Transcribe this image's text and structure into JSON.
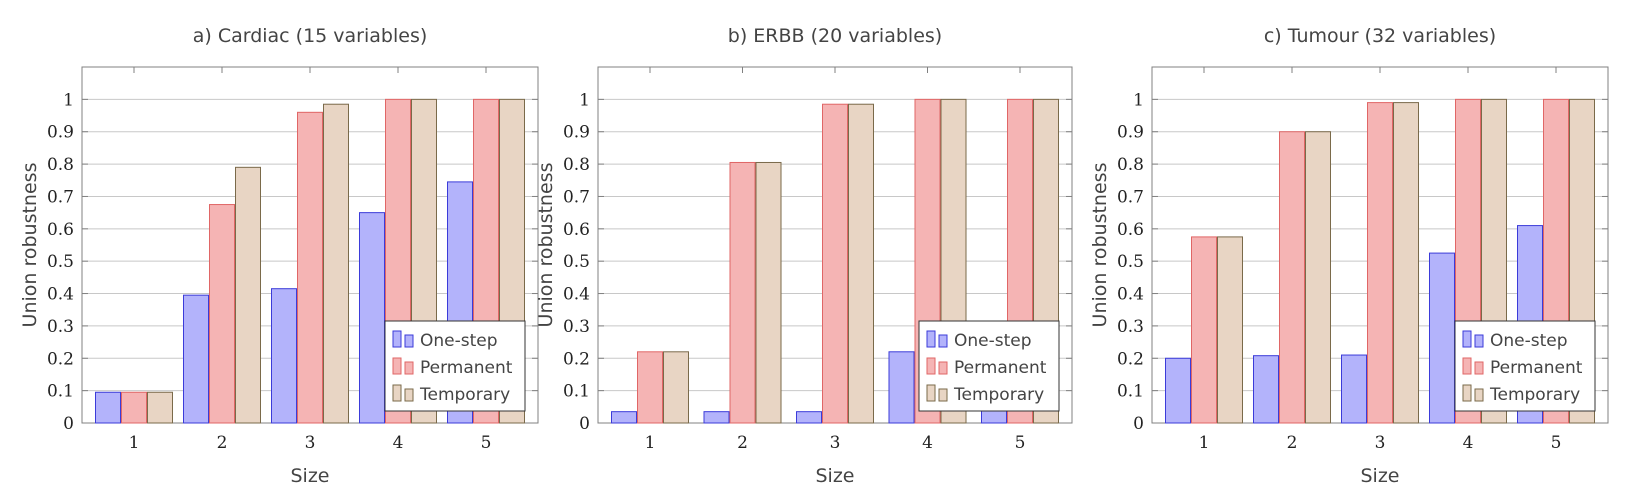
{
  "chart_data": [
    {
      "type": "bar",
      "title": "a) Cardiac (15 variables)",
      "xlabel": "Size",
      "ylabel": "Union robustness",
      "categories": [
        "1",
        "2",
        "3",
        "4",
        "5"
      ],
      "ylim": [
        0,
        1.1
      ],
      "yticks": [
        "0",
        "0.1",
        "0.2",
        "0.3",
        "0.4",
        "0.5",
        "0.6",
        "0.7",
        "0.8",
        "0.9",
        "1"
      ],
      "grid": "y",
      "legend": "bottom-right",
      "series": [
        {
          "name": "One-step",
          "values": [
            0.095,
            0.395,
            0.415,
            0.65,
            0.745
          ],
          "fill": "#b3b3fb",
          "stroke": "#3b3bd9"
        },
        {
          "name": "Permanent",
          "values": [
            0.095,
            0.675,
            0.96,
            1.0,
            1.0
          ],
          "fill": "#f5b4b4",
          "stroke": "#e06666"
        },
        {
          "name": "Temporary",
          "values": [
            0.095,
            0.79,
            0.985,
            1.0,
            1.0
          ],
          "fill": "#e8d5c4",
          "stroke": "#7a6a4a"
        }
      ]
    },
    {
      "type": "bar",
      "title": "b) ERBB (20 variables)",
      "xlabel": "Size",
      "ylabel": "Union robustness",
      "categories": [
        "1",
        "2",
        "3",
        "4",
        "5"
      ],
      "ylim": [
        0,
        1.1
      ],
      "yticks": [
        "0",
        "0.1",
        "0.2",
        "0.3",
        "0.4",
        "0.5",
        "0.6",
        "0.7",
        "0.8",
        "0.9",
        "1"
      ],
      "grid": "y",
      "legend": "bottom-right",
      "series": [
        {
          "name": "One-step",
          "values": [
            0.035,
            0.035,
            0.035,
            0.22,
            0.22
          ],
          "fill": "#b3b3fb",
          "stroke": "#3b3bd9"
        },
        {
          "name": "Permanent",
          "values": [
            0.22,
            0.805,
            0.985,
            1.0,
            1.0
          ],
          "fill": "#f5b4b4",
          "stroke": "#e06666"
        },
        {
          "name": "Temporary",
          "values": [
            0.22,
            0.805,
            0.985,
            1.0,
            1.0
          ],
          "fill": "#e8d5c4",
          "stroke": "#7a6a4a"
        }
      ]
    },
    {
      "type": "bar",
      "title": "c) Tumour (32 variables)",
      "xlabel": "Size",
      "ylabel": "Union robustness",
      "categories": [
        "1",
        "2",
        "3",
        "4",
        "5"
      ],
      "ylim": [
        0,
        1.1
      ],
      "yticks": [
        "0",
        "0.1",
        "0.2",
        "0.3",
        "0.4",
        "0.5",
        "0.6",
        "0.7",
        "0.8",
        "0.9",
        "1"
      ],
      "grid": "y",
      "legend": "bottom-right",
      "series": [
        {
          "name": "One-step",
          "values": [
            0.2,
            0.208,
            0.21,
            0.525,
            0.61
          ],
          "fill": "#b3b3fb",
          "stroke": "#3b3bd9"
        },
        {
          "name": "Permanent",
          "values": [
            0.575,
            0.9,
            0.99,
            1.0,
            1.0
          ],
          "fill": "#f5b4b4",
          "stroke": "#e06666"
        },
        {
          "name": "Temporary",
          "values": [
            0.575,
            0.9,
            0.99,
            1.0,
            1.0
          ],
          "fill": "#e8d5c4",
          "stroke": "#7a6a4a"
        }
      ]
    }
  ]
}
